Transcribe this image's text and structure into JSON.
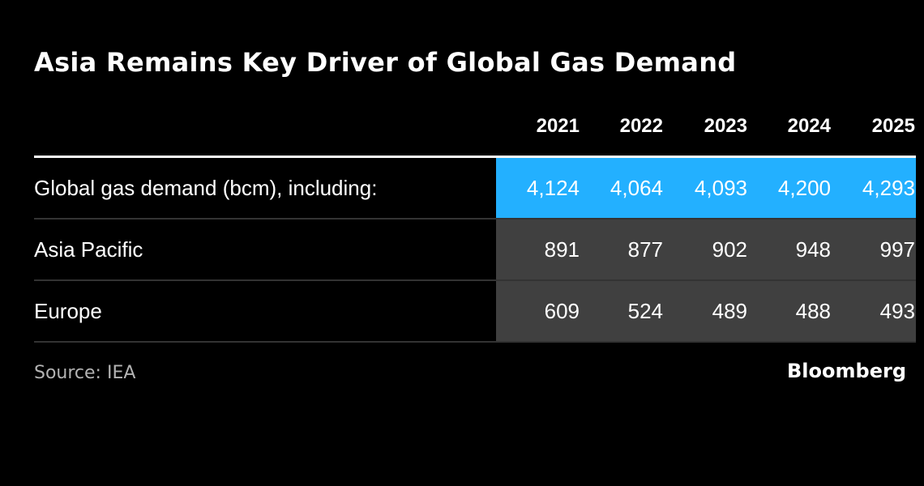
{
  "chart_data": {
    "type": "table",
    "title": "Asia Remains Key Driver of Global Gas Demand",
    "columns": [
      "2021",
      "2022",
      "2023",
      "2024",
      "2025"
    ],
    "rows": [
      {
        "label": "Global gas demand (bcm), including:",
        "values": [
          "4,124",
          "4,064",
          "4,093",
          "4,200",
          "4,293"
        ]
      },
      {
        "label": "Asia Pacific",
        "values": [
          "891",
          "877",
          "902",
          "948",
          "997"
        ]
      },
      {
        "label": "Europe",
        "values": [
          "609",
          "524",
          "489",
          "488",
          "493"
        ]
      }
    ],
    "source": "Source: IEA",
    "brand": "Bloomberg"
  },
  "colors": {
    "background": "#000000",
    "highlight_row_fill": "#23b0ff",
    "data_cell_fill": "#404040",
    "row_divider": "#333333",
    "header_rule": "#ffffff",
    "text": "#ffffff",
    "muted_text": "#b3b3b3"
  }
}
